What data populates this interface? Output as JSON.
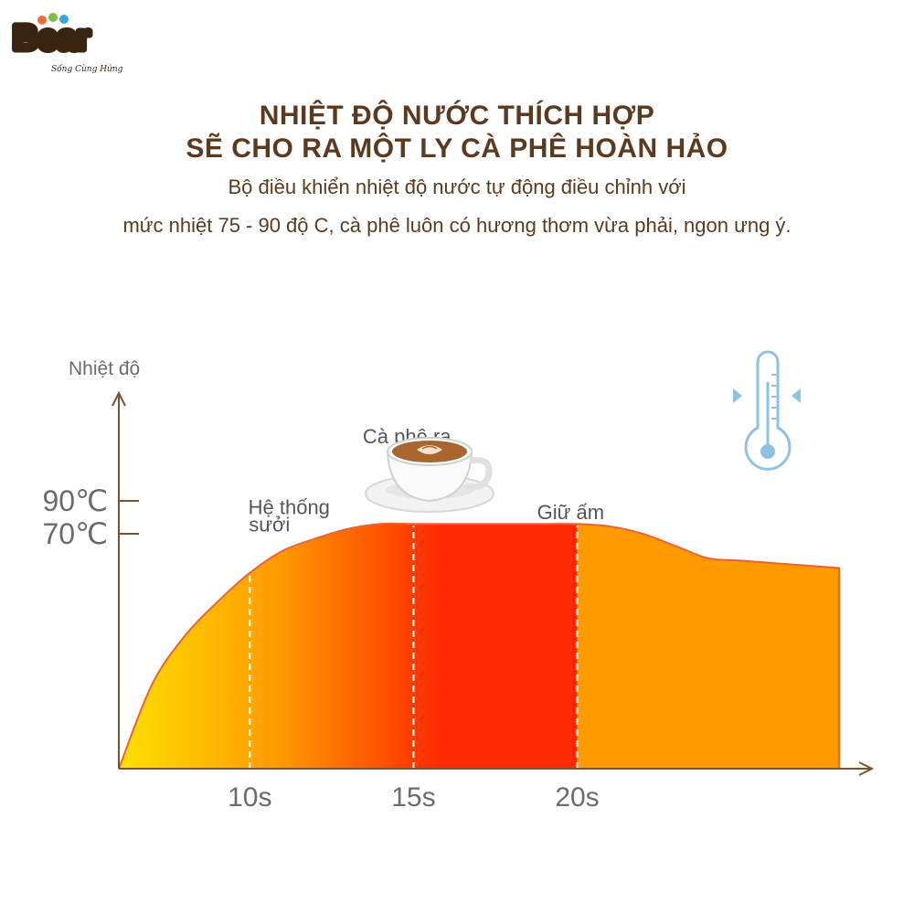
{
  "brand": {
    "logo_text": "Bear",
    "tagline": "Sống Cùng Hứng"
  },
  "headline": {
    "line1": "NHIỆT ĐỘ NƯỚC THÍCH HỢP",
    "line2": "SẼ CHO RA MỘT LY CÀ PHÊ HOÀN HẢO"
  },
  "description": {
    "line1": "Bộ điều khiển nhiệt độ nước tự động điều chỉnh với",
    "line2": "mức nhiệt 75 - 90 độ C, cà phê luôn có hương thơm vừa phải, ngon ưng ý."
  },
  "colors": {
    "text_brown": "#5b3a1f",
    "axis": "#7a5230",
    "curve_stroke": "#e8623a",
    "gradient_start": "#ffe000",
    "gradient_mid": "#ff9000",
    "gradient_hot": "#ff2a00",
    "warm_fill": "#ff9a00",
    "thermometer": "#8fc1e3"
  },
  "chart_data": {
    "type": "area",
    "ylabel": "Nhiệt độ",
    "x_ticks": [
      {
        "value": 10,
        "label": "10s"
      },
      {
        "value": 15,
        "label": "15s"
      },
      {
        "value": 20,
        "label": "20s"
      }
    ],
    "y_ticks": [
      {
        "value": 90,
        "label": "90℃"
      },
      {
        "value": 70,
        "label": "70℃"
      }
    ],
    "annotations": [
      {
        "text": "Hệ thống",
        "x": 11.2,
        "y": 104
      },
      {
        "text": "sưởi",
        "x": 10.6,
        "y": 97
      },
      {
        "text": "Cà phê ra",
        "x": 14.8,
        "y": 133
      },
      {
        "text": "Giữ ấm",
        "x": 19.8,
        "y": 102
      }
    ],
    "series": [
      {
        "x": [
          6,
          7,
          8,
          9,
          10,
          11,
          12,
          13,
          14,
          15,
          16,
          17,
          18,
          19,
          20,
          21,
          22,
          23,
          24,
          25,
          26,
          27,
          28
        ],
        "y": [
          0,
          34,
          54,
          68,
          80,
          89,
          94,
          98,
          100,
          100,
          100,
          100,
          100,
          100,
          100,
          99,
          96,
          91,
          86,
          85,
          84,
          83,
          82
        ]
      }
    ],
    "xlim": [
      6,
      28.5
    ],
    "ylim": [
      0,
      155
    ],
    "markers": [
      10,
      15,
      20
    ]
  }
}
